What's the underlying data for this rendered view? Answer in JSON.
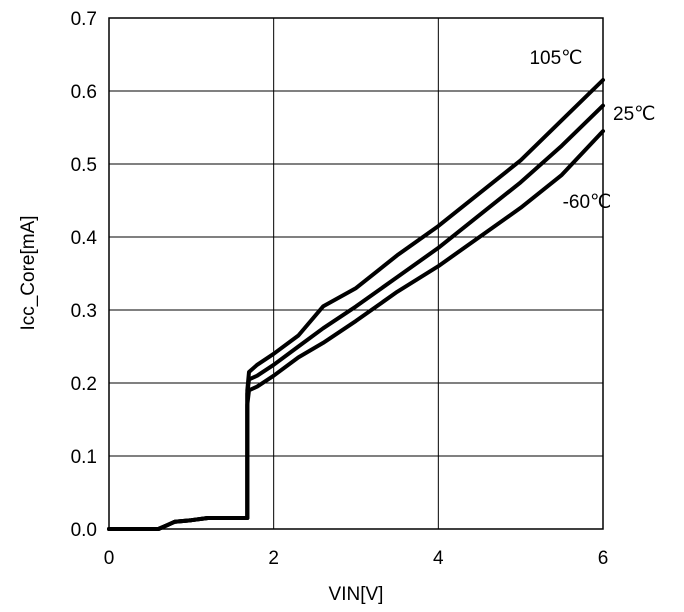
{
  "chart_data": {
    "type": "line",
    "title": "",
    "xlabel": "VIN[V]",
    "ylabel": "Icc_Core[mA]",
    "xlim": [
      0,
      6
    ],
    "ylim": [
      0,
      0.7
    ],
    "x_ticks": [
      0,
      2,
      4,
      6
    ],
    "x_tick_labels": [
      "0",
      "2",
      "4",
      "6"
    ],
    "y_ticks": [
      0,
      0.1,
      0.2,
      0.3,
      0.4,
      0.5,
      0.6,
      0.7
    ],
    "y_tick_labels": [
      "0.0",
      "0.1",
      "0.2",
      "0.3",
      "0.4",
      "0.5",
      "0.6",
      "0.7"
    ],
    "grid": true,
    "legend": "none",
    "series": [
      {
        "name": "105℃",
        "x": [
          0,
          0.6,
          0.7,
          0.8,
          1.0,
          1.2,
          1.5,
          1.68,
          1.68,
          1.7,
          1.8,
          2.0,
          2.3,
          2.6,
          3.0,
          3.5,
          4.0,
          4.5,
          5.0,
          5.5,
          6.0
        ],
        "y": [
          0,
          0,
          0.005,
          0.01,
          0.012,
          0.015,
          0.015,
          0.015,
          0.19,
          0.215,
          0.225,
          0.24,
          0.265,
          0.305,
          0.33,
          0.375,
          0.415,
          0.46,
          0.505,
          0.56,
          0.615
        ]
      },
      {
        "name": "25℃",
        "x": [
          0,
          0.6,
          0.7,
          0.8,
          1.0,
          1.2,
          1.5,
          1.68,
          1.68,
          1.7,
          1.8,
          2.0,
          2.3,
          2.6,
          3.0,
          3.5,
          4.0,
          4.5,
          5.0,
          5.5,
          6.0
        ],
        "y": [
          0,
          0,
          0.005,
          0.01,
          0.012,
          0.015,
          0.015,
          0.015,
          0.185,
          0.205,
          0.21,
          0.225,
          0.25,
          0.275,
          0.305,
          0.345,
          0.385,
          0.43,
          0.475,
          0.525,
          0.58
        ]
      },
      {
        "name": "-60℃",
        "x": [
          0,
          0.6,
          0.7,
          0.8,
          1.0,
          1.2,
          1.5,
          1.68,
          1.68,
          1.7,
          1.8,
          2.0,
          2.3,
          2.6,
          3.0,
          3.5,
          4.0,
          4.5,
          5.0,
          5.5,
          6.0
        ],
        "y": [
          0,
          0,
          0.005,
          0.01,
          0.012,
          0.015,
          0.015,
          0.015,
          0.17,
          0.19,
          0.195,
          0.21,
          0.235,
          0.255,
          0.285,
          0.325,
          0.36,
          0.4,
          0.44,
          0.485,
          0.545
        ]
      }
    ]
  }
}
